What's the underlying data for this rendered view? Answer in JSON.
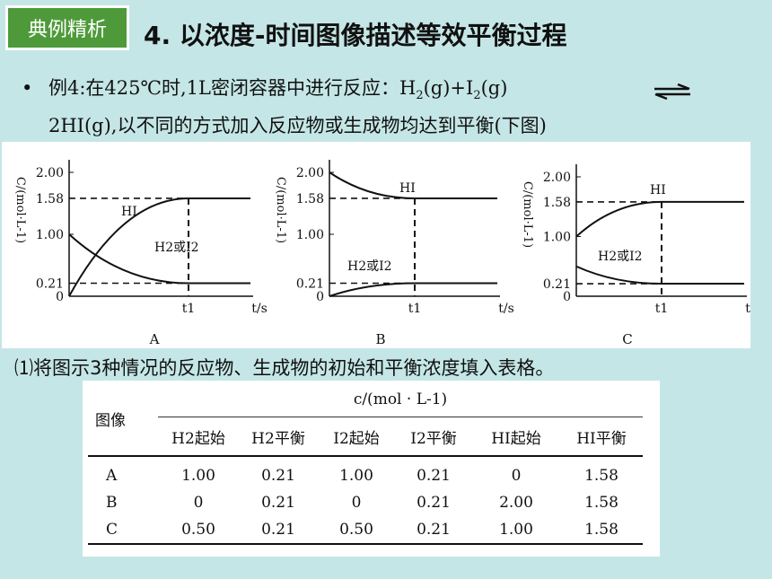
{
  "tag": "典例精析",
  "title": "4. 以浓度-时间图像描述等效平衡过程",
  "problem": {
    "line1_prefix": "例4:在425℃时,1L密闭容器中进行反应：H",
    "line1_sub1": "2",
    "line1_mid": "(g)+I",
    "line1_sub2": "2",
    "line1_suffix": "(g)",
    "line2": "2HI(g),以不同的方式加入反应物或生成物均达到平衡(下图)"
  },
  "question": "⑴将图示3种情况的反应物、生成物的初始和平衡浓度填入表格。",
  "chart_data": [
    {
      "type": "line",
      "label": "A",
      "ylabel": "C/(mol·L-1)",
      "xlabel": "t/s",
      "x_mark": "t1",
      "y_ticks": [
        "2.00",
        "1.58",
        "1.00",
        "0.21",
        "0"
      ],
      "series": [
        {
          "name": "HI",
          "start": 0,
          "end": 1.58
        },
        {
          "name": "H2或I2",
          "start": 1.0,
          "end": 0.21
        }
      ]
    },
    {
      "type": "line",
      "label": "B",
      "ylabel": "C/(mol·L-1)",
      "xlabel": "t/s",
      "x_mark": "t1",
      "y_ticks": [
        "2.00",
        "1.58",
        "1.00",
        "0.21",
        "0"
      ],
      "series": [
        {
          "name": "HI",
          "start": 2.0,
          "end": 1.58
        },
        {
          "name": "H2或I2",
          "start": 0,
          "end": 0.21
        }
      ]
    },
    {
      "type": "line",
      "label": "C",
      "ylabel": "C/(mol·L-1)",
      "xlabel": "t/s",
      "x_mark": "t1",
      "y_ticks": [
        "2.00",
        "1.58",
        "1.00",
        "0.21",
        "0"
      ],
      "series": [
        {
          "name": "HI",
          "start": 1.0,
          "end": 1.58
        },
        {
          "name": "H2或I2",
          "start": 0.5,
          "end": 0.21
        }
      ]
    }
  ],
  "table": {
    "row_header": "图像",
    "group_header": "c/(mol · L-1)",
    "columns": [
      "H2起始",
      "H2平衡",
      "I2起始",
      "I2平衡",
      "HI起始",
      "HI平衡"
    ],
    "rows": [
      [
        "A",
        "1.00",
        "0.21",
        "1.00",
        "0.21",
        "0",
        "1.58"
      ],
      [
        "B",
        "0",
        "0.21",
        "0",
        "0.21",
        "2.00",
        "1.58"
      ],
      [
        "C",
        "0.50",
        "0.21",
        "0.50",
        "0.21",
        "1.00",
        "1.58"
      ]
    ]
  }
}
